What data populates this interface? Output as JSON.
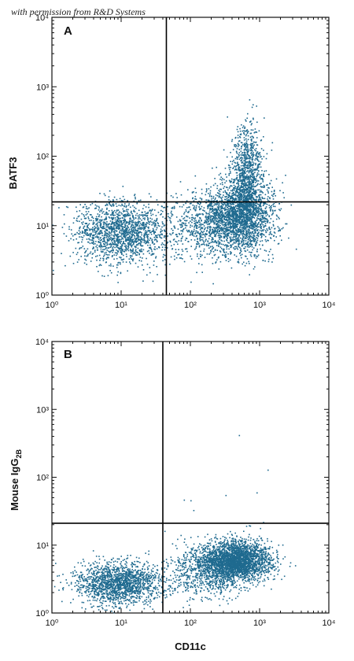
{
  "watermark": "with permission from R&D Systems",
  "colors": {
    "dots": "#1f6a8f",
    "axis": "#111111",
    "gate": "#000000"
  },
  "chart_data": [
    {
      "type": "scatter",
      "panel_label": "A",
      "xlabel": "",
      "ylabel": "BATF3",
      "xscale": "log",
      "yscale": "log",
      "xlim": [
        1,
        10000
      ],
      "ylim": [
        1,
        10000
      ],
      "x_ticks": [
        "10⁰",
        "10¹",
        "10²",
        "10³",
        "10⁴"
      ],
      "y_ticks": [
        "10⁰",
        "10¹",
        "10²",
        "10³",
        "10⁴"
      ],
      "quadrant_gate": {
        "x": 45,
        "y": 22
      },
      "populations": [
        {
          "center": [
            10,
            8
          ],
          "log_spread": [
            0.35,
            0.22
          ],
          "count": 1600
        },
        {
          "center": [
            500,
            14
          ],
          "log_spread": [
            0.25,
            0.25
          ],
          "count": 2000
        },
        {
          "center": [
            650,
            60
          ],
          "log_spread": [
            0.12,
            0.35
          ],
          "count": 900
        },
        {
          "center": [
            200,
            10
          ],
          "log_spread": [
            0.35,
            0.25
          ],
          "count": 700
        }
      ]
    },
    {
      "type": "scatter",
      "panel_label": "B",
      "xlabel": "CD11c",
      "ylabel": "Mouse IgG",
      "ylabel_sub": "2B",
      "xscale": "log",
      "yscale": "log",
      "xlim": [
        1,
        10000
      ],
      "ylim": [
        1,
        10000
      ],
      "x_ticks": [
        "10⁰",
        "10¹",
        "10²",
        "10³",
        "10⁴"
      ],
      "y_ticks": [
        "10⁰",
        "10¹",
        "10²",
        "10³",
        "10⁴"
      ],
      "quadrant_gate": {
        "x": 40,
        "y": 21
      },
      "populations": [
        {
          "center": [
            9,
            2.8
          ],
          "log_spread": [
            0.3,
            0.15
          ],
          "count": 1600
        },
        {
          "center": [
            450,
            6
          ],
          "log_spread": [
            0.25,
            0.15
          ],
          "count": 2600
        },
        {
          "center": [
            150,
            4
          ],
          "log_spread": [
            0.3,
            0.2
          ],
          "count": 600
        }
      ],
      "outliers": [
        [
          500,
          420
        ],
        [
          1300,
          130
        ],
        [
          80,
          47
        ],
        [
          100,
          46
        ],
        [
          110,
          33
        ],
        [
          320,
          55
        ],
        [
          900,
          60
        ]
      ]
    }
  ]
}
